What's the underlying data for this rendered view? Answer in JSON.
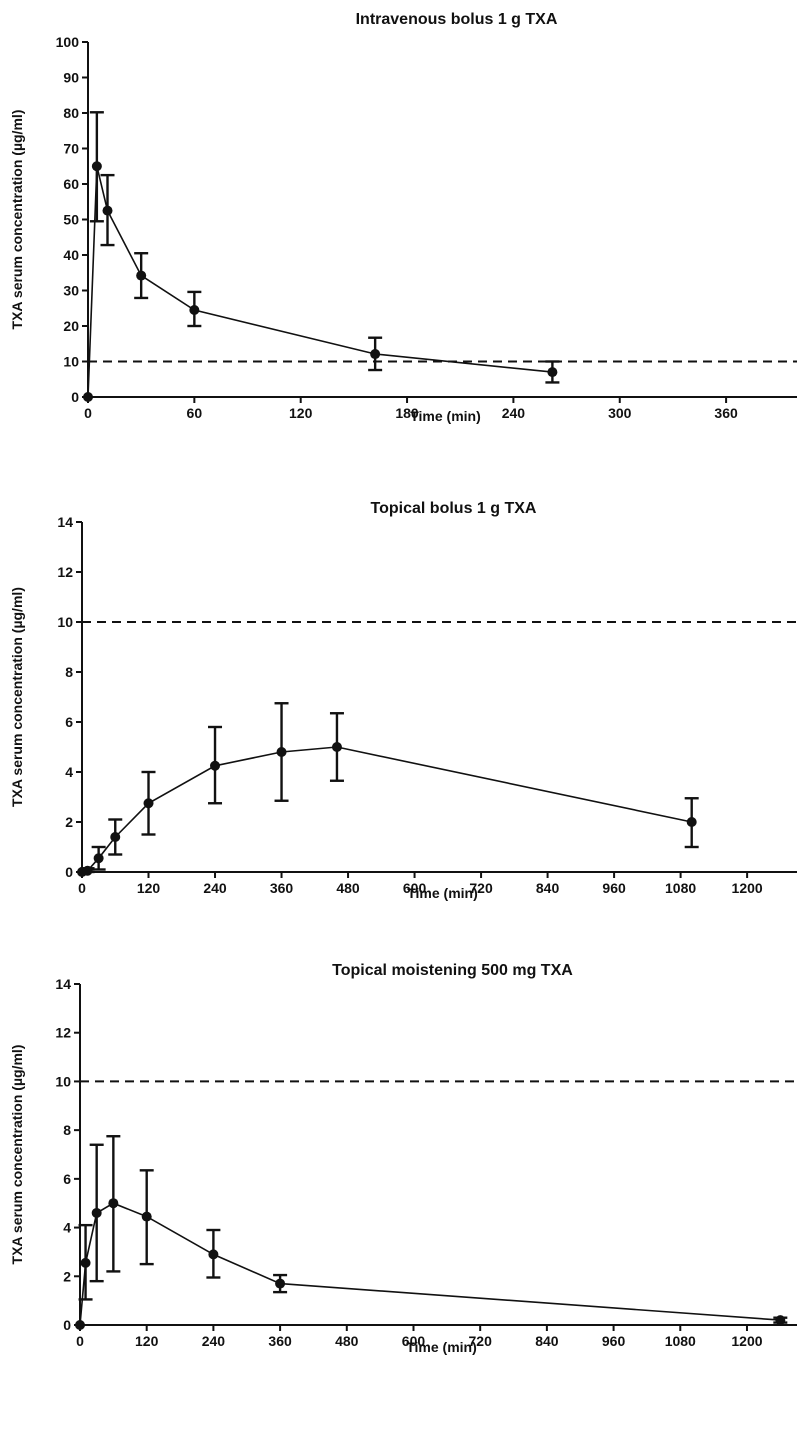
{
  "chart_data": [
    {
      "type": "line",
      "title": "Intravenous bolus 1 g TXA",
      "xlabel": "Time (min)",
      "ylabel": "TXA serum concentration (µg/ml)",
      "xlim": [
        0,
        400
      ],
      "ylim": [
        0,
        100
      ],
      "xticks": [
        0,
        60,
        120,
        180,
        240,
        300,
        360
      ],
      "yticks": [
        0,
        10,
        20,
        30,
        40,
        50,
        60,
        70,
        80,
        90,
        100
      ],
      "reference_line": 10,
      "series": [
        {
          "x": [
            0,
            5,
            11,
            30,
            60,
            162,
            262
          ],
          "y": [
            0,
            65,
            52.5,
            34.2,
            24.5,
            12.1,
            7.0
          ],
          "err_low": [
            0,
            49.5,
            42.8,
            27.9,
            20.0,
            7.6,
            4.1
          ],
          "err_high": [
            0,
            80.2,
            62.5,
            40.5,
            29.6,
            16.7,
            10.0
          ]
        }
      ]
    },
    {
      "type": "line",
      "title": "Topical bolus 1 g TXA",
      "xlabel": "Time (min)",
      "ylabel": "TXA serum concentration (µg/ml)",
      "xlim": [
        0,
        1290
      ],
      "ylim": [
        0,
        14
      ],
      "xticks": [
        0,
        120,
        240,
        360,
        480,
        600,
        720,
        840,
        960,
        1080,
        1200
      ],
      "yticks": [
        0,
        2,
        4,
        6,
        8,
        10,
        12,
        14
      ],
      "reference_line": 10,
      "series": [
        {
          "x": [
            0,
            10,
            30,
            60,
            120,
            240,
            360,
            460,
            1100
          ],
          "y": [
            0,
            0.05,
            0.55,
            1.4,
            2.75,
            4.25,
            4.8,
            5.0,
            2.0
          ],
          "err_low": [
            0,
            0,
            0.1,
            0.7,
            1.5,
            2.75,
            2.85,
            3.65,
            1.0
          ],
          "err_high": [
            0,
            0.15,
            1.0,
            2.1,
            4.0,
            5.8,
            6.75,
            6.35,
            2.95
          ]
        }
      ]
    },
    {
      "type": "line",
      "title": "Topical moistening 500 mg TXA",
      "xlabel": "Time (min)",
      "ylabel": "TXA serum concentration (µg/ml)",
      "xlim": [
        0,
        1290
      ],
      "ylim": [
        0,
        14
      ],
      "xticks": [
        0,
        120,
        240,
        360,
        480,
        600,
        720,
        840,
        960,
        1080,
        1200
      ],
      "yticks": [
        0,
        2,
        4,
        6,
        8,
        10,
        12,
        14
      ],
      "reference_line": 10,
      "series": [
        {
          "x": [
            0,
            10,
            30,
            60,
            120,
            240,
            360,
            1260
          ],
          "y": [
            0,
            2.55,
            4.6,
            5.0,
            4.45,
            2.9,
            1.7,
            0.2
          ],
          "err_low": [
            0,
            1.05,
            1.8,
            2.2,
            2.5,
            1.95,
            1.35,
            0.1
          ],
          "err_high": [
            0,
            4.1,
            7.4,
            7.75,
            6.35,
            3.9,
            2.05,
            0.3
          ]
        }
      ]
    }
  ]
}
